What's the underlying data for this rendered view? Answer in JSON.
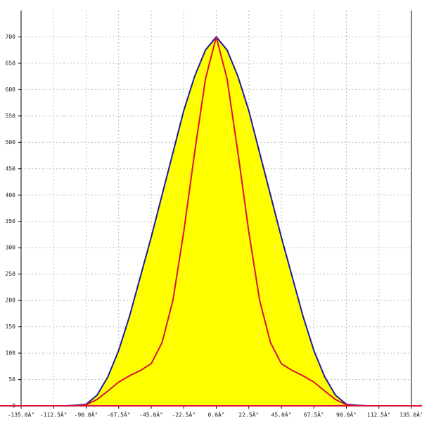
{
  "chart_data": {
    "type": "area",
    "x": [
      -105,
      -97.5,
      -90,
      -82.5,
      -75,
      -67.5,
      -60,
      -52.5,
      -45,
      -37.5,
      -30,
      -22.5,
      -15,
      -7.5,
      0,
      7.5,
      15,
      22.5,
      30,
      37.5,
      45,
      52.5,
      60,
      67.5,
      75,
      82.5,
      90,
      97.5,
      105
    ],
    "series": [
      {
        "color": "#1a1aa0",
        "fill": "#ffff00",
        "values": [
          0,
          1,
          3,
          20,
          55,
          105,
          170,
          245,
          320,
          400,
          480,
          560,
          625,
          675,
          700,
          675,
          625,
          560,
          480,
          400,
          320,
          245,
          170,
          105,
          55,
          20,
          3,
          1,
          0
        ]
      },
      {
        "color": "#dd1133",
        "values": [
          0,
          0,
          2,
          12,
          28,
          45,
          57,
          67,
          80,
          120,
          200,
          330,
          480,
          620,
          700,
          620,
          480,
          330,
          200,
          120,
          80,
          67,
          57,
          45,
          28,
          12,
          2,
          0,
          0
        ]
      }
    ],
    "xlim": [
      -135,
      135
    ],
    "xticks": [
      {
        "value": -135,
        "label": "-135.0Â°"
      },
      {
        "value": -112.5,
        "label": "-112.5Â°"
      },
      {
        "value": -90,
        "label": "-90.0Â°"
      },
      {
        "value": -67.5,
        "label": "-67.5Â°"
      },
      {
        "value": -45,
        "label": "-45.0Â°"
      },
      {
        "value": -22.5,
        "label": "-22.5Â°"
      },
      {
        "value": 0,
        "label": "0.0Â°"
      },
      {
        "value": 22.5,
        "label": "22.5Â°"
      },
      {
        "value": 45,
        "label": "45.0Â°"
      },
      {
        "value": 67.5,
        "label": "67.5Â°"
      },
      {
        "value": 90,
        "label": "90.0Â°"
      },
      {
        "value": 112.5,
        "label": "112.5Â°"
      },
      {
        "value": 135,
        "label": "135.0Â°"
      }
    ],
    "ylim": [
      0,
      750
    ],
    "yticks": [
      0,
      50,
      100,
      150,
      200,
      250,
      300,
      350,
      400,
      450,
      500,
      550,
      600,
      650,
      700
    ],
    "grid": true
  }
}
